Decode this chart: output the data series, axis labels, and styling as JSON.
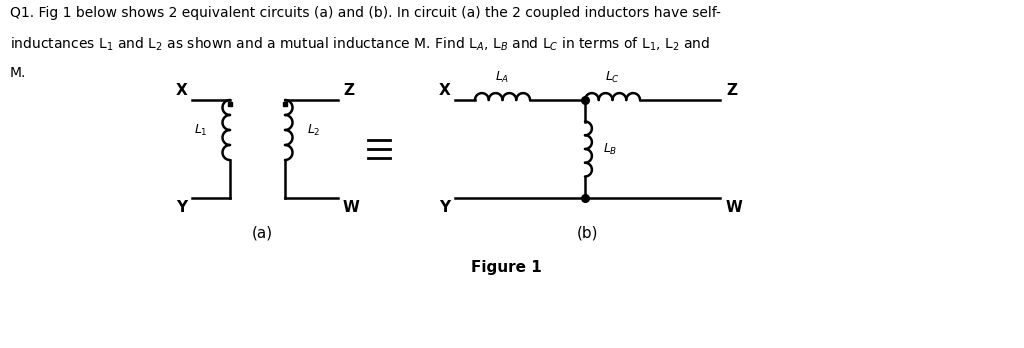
{
  "bg_color": "#ffffff",
  "line_color": "#000000",
  "lw": 1.8,
  "text_color": "#000000",
  "title_line1": "Q1. Fig 1 below shows 2 equivalent circuits (a) and (b). In circuit (a) the 2 coupled inductors have self-",
  "title_line2": "inductances L$_1$ and L$_2$ as shown and a mutual inductance M. Find L$_A$, L$_B$ and L$_C$ in terms of L$_1$, L$_2$ and",
  "title_line3": "M.",
  "circ_a_label": "(a)",
  "circ_b_label": "(b)",
  "figure_label": "Figure 1",
  "X_label": "X",
  "Y_label": "Y",
  "Z_label": "Z",
  "W_label": "W",
  "L1_label": "$L_1$",
  "L2_label": "$L_2$",
  "LA_label": "$L_A$",
  "LB_label": "$L_B$",
  "LC_label": "$L_C$"
}
